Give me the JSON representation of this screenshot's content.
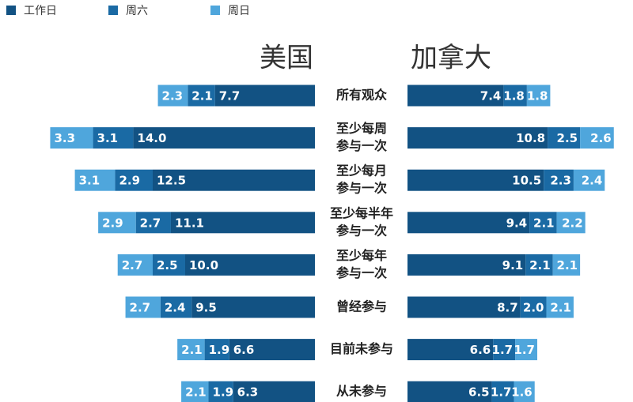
{
  "chart_data": [
    {
      "type": "bar",
      "title": "美国",
      "direction": "left",
      "legend": "top-left",
      "categories": [
        [
          "所有观众"
        ],
        [
          "至少每周",
          "参与一次"
        ],
        [
          "至少每月",
          "参与一次"
        ],
        [
          "至少每半年",
          "参与一次"
        ],
        [
          "至少每年",
          "参与一次"
        ],
        [
          "曾经参与"
        ],
        [
          "目前未参与"
        ],
        [
          "从未参与"
        ]
      ],
      "series": [
        {
          "name": "工作日",
          "color": "#125283",
          "values": [
            7.7,
            14.0,
            12.5,
            11.1,
            10.0,
            9.5,
            6.6,
            6.3
          ],
          "value_labels": [
            "7.7",
            "14.0",
            "12.5",
            "11.1",
            "10.0",
            "9.5",
            "6.6",
            "6.3"
          ]
        },
        {
          "name": "周六",
          "color": "#1a6aa4",
          "values": [
            2.1,
            3.1,
            2.9,
            2.7,
            2.5,
            2.4,
            1.9,
            1.9
          ],
          "value_labels": [
            "2.1",
            "3.1",
            "2.9",
            "2.7",
            "2.5",
            "2.4",
            "1.9",
            "1.9"
          ]
        },
        {
          "name": "周日",
          "color": "#4fa6dc",
          "values": [
            2.3,
            3.3,
            3.1,
            2.9,
            2.7,
            2.7,
            2.1,
            2.1
          ],
          "value_labels": [
            "2.3",
            "3.3",
            "3.1",
            "2.9",
            "2.7",
            "2.7",
            "2.1",
            "2.1"
          ]
        }
      ]
    },
    {
      "type": "bar",
      "title": "加拿大",
      "direction": "right",
      "series": [
        {
          "color": "#125283",
          "values": [
            7.4,
            10.8,
            10.5,
            9.4,
            9.1,
            8.7,
            6.6,
            6.5
          ],
          "value_labels": [
            "7.4",
            "10.8",
            "10.5",
            "9.4",
            "9.1",
            "8.7",
            "6.6",
            "6.5"
          ]
        },
        {
          "color": "#1a6aa4",
          "values": [
            1.8,
            2.5,
            2.3,
            2.1,
            2.1,
            2.0,
            1.7,
            1.7
          ],
          "value_labels": [
            "1.8",
            "2.5",
            "2.3",
            "2.1",
            "2.1",
            "2.0",
            "1.7",
            "1.7"
          ]
        },
        {
          "color": "#4fa6dc",
          "values": [
            1.8,
            2.6,
            2.4,
            2.2,
            2.1,
            2.1,
            1.7,
            1.6
          ],
          "value_labels": [
            "1.8",
            "2.6",
            "2.4",
            "2.2",
            "2.1",
            "2.1",
            "1.7",
            "1.6"
          ]
        }
      ]
    }
  ]
}
